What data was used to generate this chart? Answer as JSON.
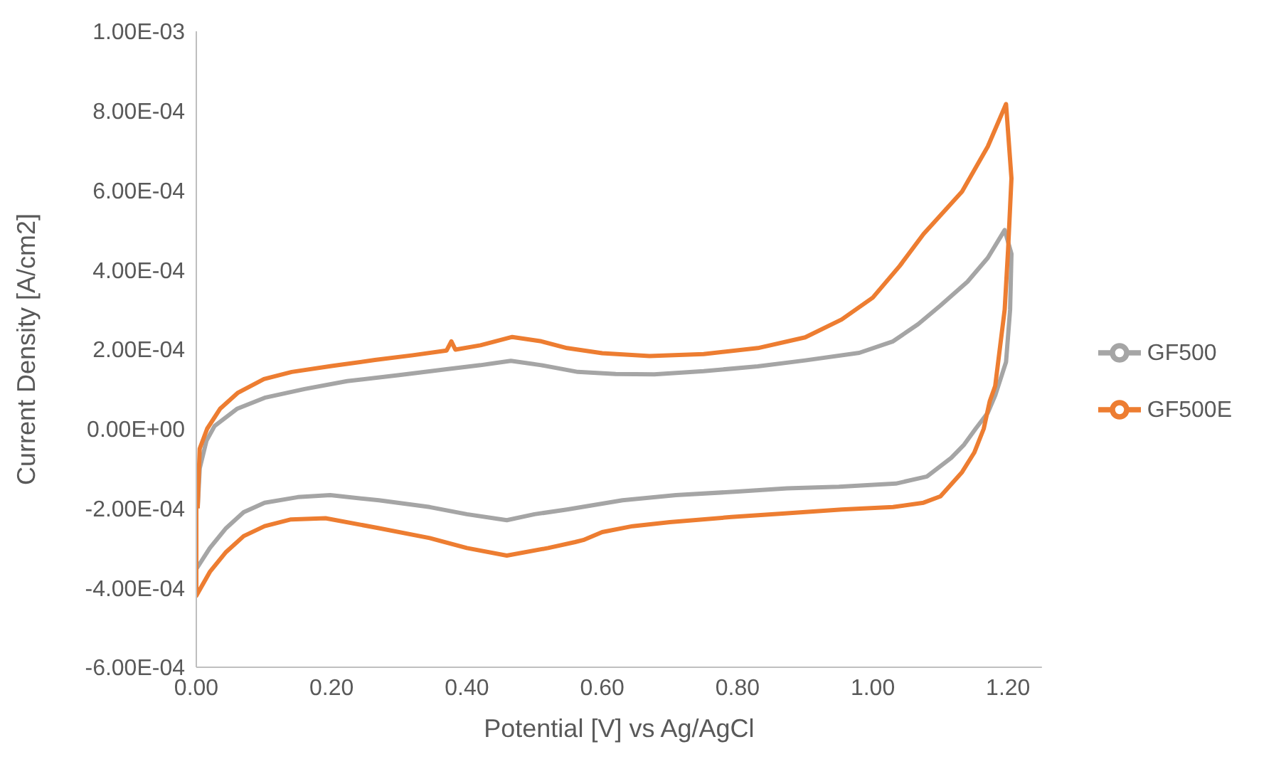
{
  "chart_data": {
    "type": "line",
    "xlabel": "Potential [V] vs Ag/AgCl",
    "ylabel": "Current Density [A/cm2]",
    "xlim": [
      0,
      1.25
    ],
    "xticks": [
      {
        "value": 0,
        "label": "0.00"
      },
      {
        "value": 0.2,
        "label": "0.20"
      },
      {
        "value": 0.4,
        "label": "0.40"
      },
      {
        "value": 0.6,
        "label": "0.60"
      },
      {
        "value": 0.8,
        "label": "0.80"
      },
      {
        "value": 1,
        "label": "1.00"
      },
      {
        "value": 1.2,
        "label": "1.20"
      }
    ],
    "ylim": [
      -0.0006,
      0.001
    ],
    "yticks": [
      {
        "value": -0.0006,
        "label": "-6.00E-04"
      },
      {
        "value": -0.0004,
        "label": "-4.00E-04"
      },
      {
        "value": -0.0002,
        "label": "-2.00E-04"
      },
      {
        "value": 0,
        "label": "0.00E+00"
      },
      {
        "value": 0.0002,
        "label": "2.00E-04"
      },
      {
        "value": 0.0004,
        "label": "4.00E-04"
      },
      {
        "value": 0.0006,
        "label": "6.00E-04"
      },
      {
        "value": 0.0008,
        "label": "8.00E-04"
      },
      {
        "value": 0.001,
        "label": "1.00E-03"
      }
    ],
    "grid": false,
    "legend": "right",
    "marker": "none",
    "line_style": "solid",
    "series": [
      {
        "name": "GF500",
        "color": "#a5a5a5",
        "x": [
          0.002,
          0.005,
          0.015,
          0.027,
          0.06,
          0.101,
          0.16,
          0.223,
          0.3,
          0.37,
          0.42,
          0.465,
          0.51,
          0.564,
          0.62,
          0.677,
          0.75,
          0.83,
          0.9,
          0.98,
          1.03,
          1.067,
          1.1,
          1.14,
          1.17,
          1.195,
          1.205,
          1.203,
          1.197,
          1.181,
          1.17,
          1.152,
          1.135,
          1.116,
          1.08,
          1.034,
          0.95,
          0.873,
          0.8,
          0.709,
          0.63,
          0.548,
          0.5,
          0.459,
          0.4,
          0.345,
          0.27,
          0.198,
          0.15,
          0.101,
          0.07,
          0.044,
          0.02,
          0.0,
          0.0
        ],
        "values": [
          -0.0002,
          -0.0001,
          -3e-05,
          7e-06,
          5e-05,
          7.8e-05,
          0.0001,
          0.00012,
          0.000135,
          0.00015,
          0.00016,
          0.000171,
          0.00016,
          0.000143,
          0.000138,
          0.000137,
          0.000145,
          0.000157,
          0.000172,
          0.000191,
          0.00022,
          0.000263,
          0.00031,
          0.00037,
          0.00043,
          0.0005,
          0.00044,
          0.0003,
          0.000168,
          8.4e-05,
          4e-05,
          0.0,
          -4e-05,
          -7.3e-05,
          -0.00012,
          -0.000138,
          -0.000146,
          -0.00015,
          -0.000158,
          -0.000167,
          -0.00018,
          -0.000203,
          -0.000215,
          -0.00023,
          -0.000215,
          -0.000197,
          -0.00018,
          -0.000167,
          -0.000172,
          -0.000186,
          -0.00021,
          -0.00025,
          -0.0003,
          -0.000353,
          -0.00037
        ]
      },
      {
        "name": "GF500E",
        "color": "#ed7d31",
        "x": [
          0.002,
          0.005,
          0.016,
          0.035,
          0.061,
          0.1,
          0.141,
          0.2,
          0.264,
          0.32,
          0.37,
          0.377,
          0.383,
          0.42,
          0.467,
          0.51,
          0.548,
          0.6,
          0.67,
          0.75,
          0.83,
          0.9,
          0.954,
          1.0,
          1.04,
          1.075,
          1.132,
          1.17,
          1.197,
          1.205,
          1.2,
          1.195,
          1.181,
          1.173,
          1.164,
          1.15,
          1.132,
          1.1,
          1.075,
          1.03,
          0.954,
          0.87,
          0.791,
          0.7,
          0.645,
          0.6,
          0.572,
          0.56,
          0.52,
          0.459,
          0.4,
          0.345,
          0.27,
          0.191,
          0.14,
          0.101,
          0.07,
          0.044,
          0.02,
          0.0,
          0.0
        ],
        "values": [
          -0.0002,
          -5e-05,
          0.0,
          5e-05,
          9e-05,
          0.000125,
          0.000143,
          0.000158,
          0.000173,
          0.000185,
          0.000197,
          0.00022,
          0.000199,
          0.00021,
          0.000231,
          0.00022,
          0.000203,
          0.00019,
          0.000183,
          0.000188,
          0.000203,
          0.00023,
          0.000275,
          0.00033,
          0.00041,
          0.00049,
          0.000597,
          0.00071,
          0.000817,
          0.00063,
          0.00045,
          0.0003,
          0.000108,
          7e-05,
          0.0,
          -6e-05,
          -0.000109,
          -0.00017,
          -0.000186,
          -0.000197,
          -0.000203,
          -0.000213,
          -0.000222,
          -0.000235,
          -0.000245,
          -0.00026,
          -0.00028,
          -0.000285,
          -0.0003,
          -0.000319,
          -0.0003,
          -0.000275,
          -0.00025,
          -0.000225,
          -0.000228,
          -0.000245,
          -0.00027,
          -0.00031,
          -0.00036,
          -0.00042,
          -0.0001
        ]
      }
    ]
  }
}
